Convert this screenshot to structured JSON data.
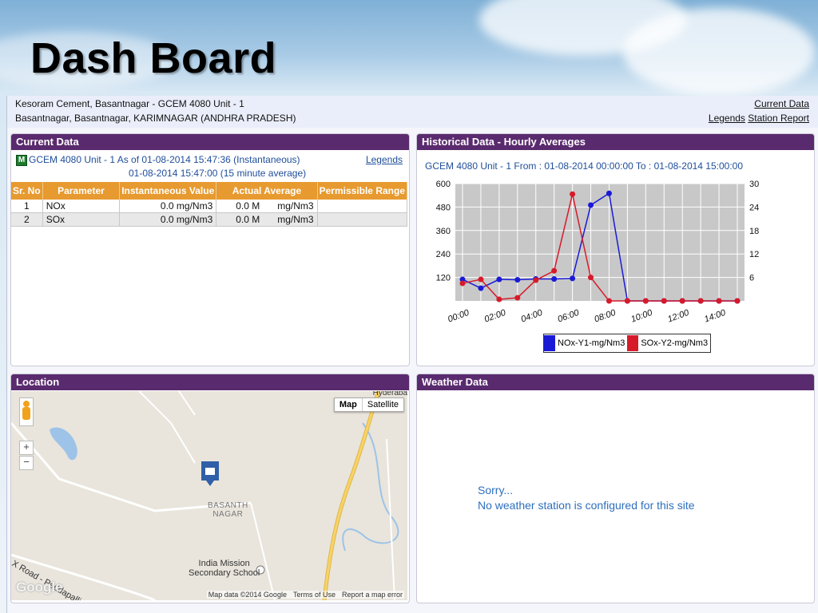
{
  "slide": {
    "title": "Dash Board"
  },
  "header": {
    "site_line1": "Kesoram Cement, Basantnagar - GCEM 4080 Unit - 1",
    "site_line2": "Basantnagar, Basantnagar, KARIMNAGAR (ANDHRA PRADESH)",
    "link_current_data": "Current Data",
    "link_legends": "Legends",
    "link_station_report": "Station Report"
  },
  "current_data": {
    "title": "Current Data",
    "badge": "M",
    "line1": "GCEM 4080 Unit - 1 As of 01-08-2014 15:47:36 (Instantaneous)",
    "line2": "01-08-2014 15:47:00 (15 minute average)",
    "legends_link": "Legends",
    "columns": [
      "Sr. No",
      "Parameter",
      "Instantaneous Value",
      "Actual Average",
      "Permissible Range"
    ],
    "rows": [
      {
        "sr": "1",
        "parameter": "NOx",
        "instantaneous": "0.0 mg/Nm3",
        "avg_value": "0.0 M",
        "avg_unit": "mg/Nm3",
        "range": ""
      },
      {
        "sr": "2",
        "parameter": "SOx",
        "instantaneous": "0.0 mg/Nm3",
        "avg_value": "0.0 M",
        "avg_unit": "mg/Nm3",
        "range": ""
      }
    ]
  },
  "historical": {
    "title": "Historical Data - Hourly Averages",
    "subtitle": "GCEM 4080 Unit - 1 From : 01-08-2014 00:00:00 To : 01-08-2014 15:00:00"
  },
  "chart_data": {
    "type": "line",
    "x": [
      "00:00",
      "01:00",
      "02:00",
      "03:00",
      "04:00",
      "05:00",
      "06:00",
      "07:00",
      "08:00",
      "09:00",
      "10:00",
      "11:00",
      "12:00",
      "13:00",
      "14:00",
      "15:00"
    ],
    "xticks": [
      "00:00",
      "02:00",
      "04:00",
      "06:00",
      "08:00",
      "10:00",
      "12:00",
      "14:00"
    ],
    "y1ticks": [
      "120",
      "240",
      "360",
      "480",
      "600"
    ],
    "y2ticks": [
      "6",
      "12",
      "18",
      "24",
      "30"
    ],
    "y1lim": [
      0,
      600
    ],
    "y2lim": [
      0,
      30
    ],
    "grid": true,
    "legend_position": "bottom",
    "series": [
      {
        "name": "NOx-Y1-mg/Nm3",
        "axis": "y1",
        "color": "#1a1ad6",
        "values": [
          110,
          65,
          110,
          108,
          112,
          112,
          115,
          490,
          550,
          0,
          0,
          0,
          0,
          0,
          0,
          0
        ]
      },
      {
        "name": "SOx-Y2-mg/Nm3",
        "axis": "y2",
        "color": "#d61a2a",
        "values": [
          4.5,
          5.5,
          0.4,
          0.8,
          5.3,
          7.7,
          27.3,
          6,
          0,
          0,
          0,
          0,
          0,
          0,
          0,
          0
        ]
      }
    ]
  },
  "location": {
    "title": "Location",
    "btn_map": "Map",
    "btn_satellite": "Satellite",
    "zoom_in": "+",
    "zoom_out": "−",
    "label_town": "BASANTH\nNAGAR",
    "label_school": "India Mission\nSecondary School",
    "label_road": "m X Road - Peddapalli",
    "label_hyd": "Hyderaba",
    "google": "Google",
    "map_data": "Map data ©2014 Google",
    "terms": "Terms of Use",
    "report": "Report a map error"
  },
  "weather": {
    "title": "Weather Data",
    "sorry": "Sorry...",
    "message": "No weather station is configured for this site"
  }
}
